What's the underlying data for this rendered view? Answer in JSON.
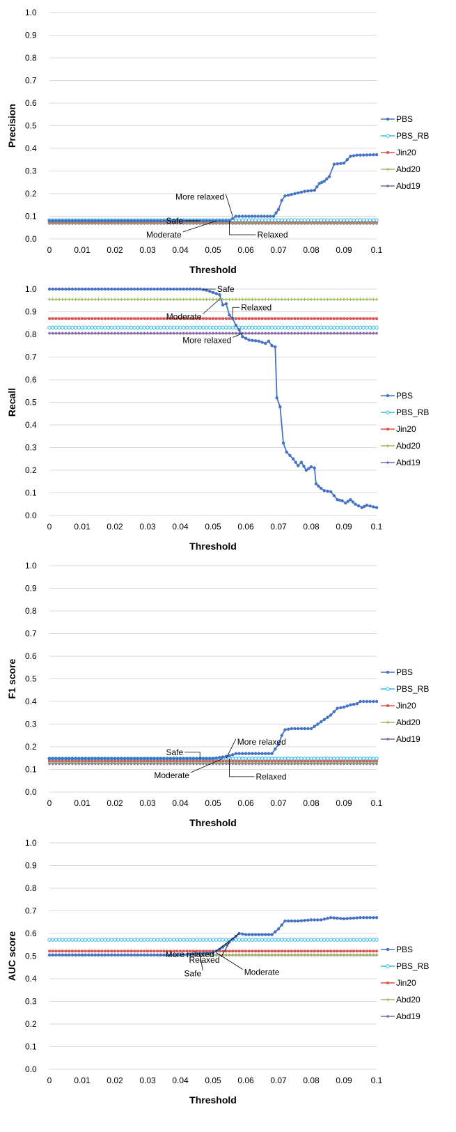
{
  "colors": {
    "PBS": "#4472C4",
    "PBS_RB": "#2EB8E6",
    "Jin20": "#D9534F",
    "Abd20": "#9BBB59",
    "Abd19": "#8064A2",
    "grid": "#d9d9d9"
  },
  "chart_data": [
    {
      "type": "line",
      "xlabel": "Threshold",
      "ylabel": "Precision",
      "xlim": [
        0,
        0.1
      ],
      "ylim": [
        0,
        1
      ],
      "x_ticks": [
        "0",
        "0.01",
        "0.02",
        "0.03",
        "0.04",
        "0.05",
        "0.06",
        "0.07",
        "0.08",
        "0.09",
        "0.1"
      ],
      "y_ticks": [
        "0.0",
        "0.1",
        "0.2",
        "0.3",
        "0.4",
        "0.5",
        "0.6",
        "0.7",
        "0.8",
        "0.9",
        "1.0"
      ],
      "grid": "horizontal",
      "legend": "right",
      "series": [
        {
          "name": "PBS",
          "points": [
            [
              0,
              0.08
            ],
            [
              0.055,
              0.08
            ],
            [
              0.057,
              0.1
            ],
            [
              0.06,
              0.1
            ],
            [
              0.0685,
              0.1
            ],
            [
              0.07,
              0.13
            ],
            [
              0.071,
              0.17
            ],
            [
              0.072,
              0.19
            ],
            [
              0.075,
              0.2
            ],
            [
              0.078,
              0.21
            ],
            [
              0.081,
              0.215
            ],
            [
              0.0825,
              0.245
            ],
            [
              0.084,
              0.255
            ],
            [
              0.0855,
              0.275
            ],
            [
              0.087,
              0.33
            ],
            [
              0.09,
              0.335
            ],
            [
              0.092,
              0.365
            ],
            [
              0.094,
              0.37
            ],
            [
              0.1,
              0.372
            ]
          ]
        },
        {
          "name": "PBS_RB",
          "points": [
            [
              0,
              0.083
            ],
            [
              0.1,
              0.083
            ]
          ]
        },
        {
          "name": "Jin20",
          "points": [
            [
              0,
              0.077
            ],
            [
              0.1,
              0.077
            ]
          ]
        },
        {
          "name": "Abd20",
          "points": [
            [
              0,
              0.072
            ],
            [
              0.1,
              0.072
            ]
          ]
        },
        {
          "name": "Abd19",
          "points": [
            [
              0,
              0.068
            ],
            [
              0.1,
              0.068
            ]
          ]
        }
      ],
      "annotations": [
        {
          "text": "Safe",
          "x": 0.046,
          "y": 0.08
        },
        {
          "text": "More relaxed",
          "x": 0.056,
          "y": 0.1
        },
        {
          "text": "Moderate",
          "x": 0.051,
          "y": 0.08
        },
        {
          "text": "Relaxed",
          "x": 0.055,
          "y": 0.08
        }
      ]
    },
    {
      "type": "line",
      "xlabel": "Threshold",
      "ylabel": "Recall",
      "xlim": [
        0,
        0.1
      ],
      "ylim": [
        0,
        1
      ],
      "x_ticks": [
        "0",
        "0.01",
        "0.02",
        "0.03",
        "0.04",
        "0.05",
        "0.06",
        "0.07",
        "0.08",
        "0.09",
        "0.1"
      ],
      "y_ticks": [
        "0.0",
        "0.1",
        "0.2",
        "0.3",
        "0.4",
        "0.5",
        "0.6",
        "0.7",
        "0.8",
        "0.9",
        "1.0"
      ],
      "grid": "horizontal",
      "legend": "right",
      "series": [
        {
          "name": "PBS",
          "points": [
            [
              0,
              1.0
            ],
            [
              0.046,
              1.0
            ],
            [
              0.048,
              0.995
            ],
            [
              0.05,
              0.985
            ],
            [
              0.052,
              0.975
            ],
            [
              0.053,
              0.93
            ],
            [
              0.054,
              0.935
            ],
            [
              0.055,
              0.885
            ],
            [
              0.056,
              0.87
            ],
            [
              0.057,
              0.84
            ],
            [
              0.058,
              0.82
            ],
            [
              0.059,
              0.79
            ],
            [
              0.061,
              0.775
            ],
            [
              0.064,
              0.77
            ],
            [
              0.066,
              0.76
            ],
            [
              0.067,
              0.77
            ],
            [
              0.068,
              0.75
            ],
            [
              0.069,
              0.745
            ],
            [
              0.0695,
              0.52
            ],
            [
              0.0705,
              0.48
            ],
            [
              0.0715,
              0.32
            ],
            [
              0.0725,
              0.28
            ],
            [
              0.0745,
              0.25
            ],
            [
              0.076,
              0.22
            ],
            [
              0.077,
              0.235
            ],
            [
              0.0785,
              0.2
            ],
            [
              0.08,
              0.215
            ],
            [
              0.081,
              0.21
            ],
            [
              0.0815,
              0.14
            ],
            [
              0.083,
              0.12
            ],
            [
              0.084,
              0.11
            ],
            [
              0.086,
              0.105
            ],
            [
              0.088,
              0.07
            ],
            [
              0.0895,
              0.065
            ],
            [
              0.0905,
              0.055
            ],
            [
              0.092,
              0.07
            ],
            [
              0.0935,
              0.05
            ],
            [
              0.0955,
              0.035
            ],
            [
              0.097,
              0.045
            ],
            [
              0.1,
              0.035
            ]
          ]
        },
        {
          "name": "PBS_RB",
          "points": [
            [
              0,
              0.83
            ],
            [
              0.1,
              0.83
            ]
          ]
        },
        {
          "name": "Jin20",
          "points": [
            [
              0,
              0.87
            ],
            [
              0.1,
              0.87
            ]
          ]
        },
        {
          "name": "Abd20",
          "points": [
            [
              0,
              0.955
            ],
            [
              0.1,
              0.955
            ]
          ]
        },
        {
          "name": "Abd19",
          "points": [
            [
              0,
              0.805
            ],
            [
              0.1,
              0.805
            ]
          ]
        }
      ],
      "annotations": [
        {
          "text": "Safe",
          "x": 0.047,
          "y": 1.0
        },
        {
          "text": "Moderate",
          "x": 0.052,
          "y": 0.955
        },
        {
          "text": "Relaxed",
          "x": 0.056,
          "y": 0.87
        },
        {
          "text": "More relaxed",
          "x": 0.059,
          "y": 0.805
        }
      ]
    },
    {
      "type": "line",
      "xlabel": "Threshold",
      "ylabel": "F1 score",
      "xlim": [
        0,
        0.1
      ],
      "ylim": [
        0,
        1
      ],
      "x_ticks": [
        "0",
        "0.01",
        "0.02",
        "0.03",
        "0.04",
        "0.05",
        "0.06",
        "0.07",
        "0.08",
        "0.09",
        "0.1"
      ],
      "y_ticks": [
        "0.0",
        "0.1",
        "0.2",
        "0.3",
        "0.4",
        "0.5",
        "0.6",
        "0.7",
        "0.8",
        "0.9",
        "1.0"
      ],
      "grid": "horizontal",
      "legend": "right",
      "series": [
        {
          "name": "PBS",
          "points": [
            [
              0,
              0.148
            ],
            [
              0.05,
              0.148
            ],
            [
              0.055,
              0.16
            ],
            [
              0.057,
              0.17
            ],
            [
              0.068,
              0.17
            ],
            [
              0.07,
              0.21
            ],
            [
              0.071,
              0.25
            ],
            [
              0.072,
              0.275
            ],
            [
              0.074,
              0.28
            ],
            [
              0.08,
              0.28
            ],
            [
              0.082,
              0.3
            ],
            [
              0.084,
              0.32
            ],
            [
              0.086,
              0.34
            ],
            [
              0.088,
              0.37
            ],
            [
              0.09,
              0.375
            ],
            [
              0.092,
              0.385
            ],
            [
              0.094,
              0.39
            ],
            [
              0.095,
              0.4
            ],
            [
              0.1,
              0.4
            ]
          ]
        },
        {
          "name": "PBS_RB",
          "points": [
            [
              0,
              0.148
            ],
            [
              0.1,
              0.148
            ]
          ]
        },
        {
          "name": "Jin20",
          "points": [
            [
              0,
              0.138
            ],
            [
              0.1,
              0.138
            ]
          ]
        },
        {
          "name": "Abd20",
          "points": [
            [
              0,
              0.132
            ],
            [
              0.1,
              0.132
            ]
          ]
        },
        {
          "name": "Abd19",
          "points": [
            [
              0,
              0.125
            ],
            [
              0.1,
              0.125
            ]
          ]
        }
      ],
      "annotations": [
        {
          "text": "Safe",
          "x": 0.046,
          "y": 0.148
        },
        {
          "text": "More relaxed",
          "x": 0.054,
          "y": 0.148
        },
        {
          "text": "Moderate",
          "x": 0.053,
          "y": 0.148
        },
        {
          "text": "Relaxed",
          "x": 0.055,
          "y": 0.148
        }
      ]
    },
    {
      "type": "line",
      "xlabel": "Threshold",
      "ylabel": "AUC score",
      "xlim": [
        0,
        0.1
      ],
      "ylim": [
        0,
        1
      ],
      "x_ticks": [
        "0",
        "0.01",
        "0.02",
        "0.03",
        "0.04",
        "0.05",
        "0.06",
        "0.07",
        "0.08",
        "0.09",
        "0.1"
      ],
      "y_ticks": [
        "0.0",
        "0.1",
        "0.2",
        "0.3",
        "0.4",
        "0.5",
        "0.6",
        "0.7",
        "0.8",
        "0.9",
        "1.0"
      ],
      "grid": "horizontal",
      "legend": "right",
      "series": [
        {
          "name": "PBS",
          "points": [
            [
              0,
              0.505
            ],
            [
              0.04,
              0.505
            ],
            [
              0.045,
              0.51
            ],
            [
              0.05,
              0.515
            ],
            [
              0.052,
              0.53
            ],
            [
              0.054,
              0.55
            ],
            [
              0.056,
              0.575
            ],
            [
              0.058,
              0.6
            ],
            [
              0.06,
              0.595
            ],
            [
              0.068,
              0.595
            ],
            [
              0.07,
              0.62
            ],
            [
              0.072,
              0.655
            ],
            [
              0.076,
              0.655
            ],
            [
              0.08,
              0.66
            ],
            [
              0.083,
              0.66
            ],
            [
              0.086,
              0.67
            ],
            [
              0.09,
              0.665
            ],
            [
              0.095,
              0.67
            ],
            [
              0.1,
              0.67
            ]
          ]
        },
        {
          "name": "PBS_RB",
          "points": [
            [
              0,
              0.572
            ],
            [
              0.1,
              0.572
            ]
          ]
        },
        {
          "name": "Jin20",
          "points": [
            [
              0,
              0.522
            ],
            [
              0.1,
              0.522
            ]
          ]
        },
        {
          "name": "Abd20",
          "points": [
            [
              0,
              0.505
            ],
            [
              0.1,
              0.505
            ]
          ]
        },
        {
          "name": "Abd19",
          "points": [
            [
              0,
              0.505
            ],
            [
              0.1,
              0.505
            ]
          ]
        }
      ],
      "annotations": [
        {
          "text": "More relaxed",
          "x": 0.058,
          "y": 0.6
        },
        {
          "text": "Safe",
          "x": 0.046,
          "y": 0.51
        },
        {
          "text": "Moderate",
          "x": 0.051,
          "y": 0.515
        },
        {
          "text": "Relaxed",
          "x": 0.055,
          "y": 0.56
        }
      ]
    }
  ]
}
